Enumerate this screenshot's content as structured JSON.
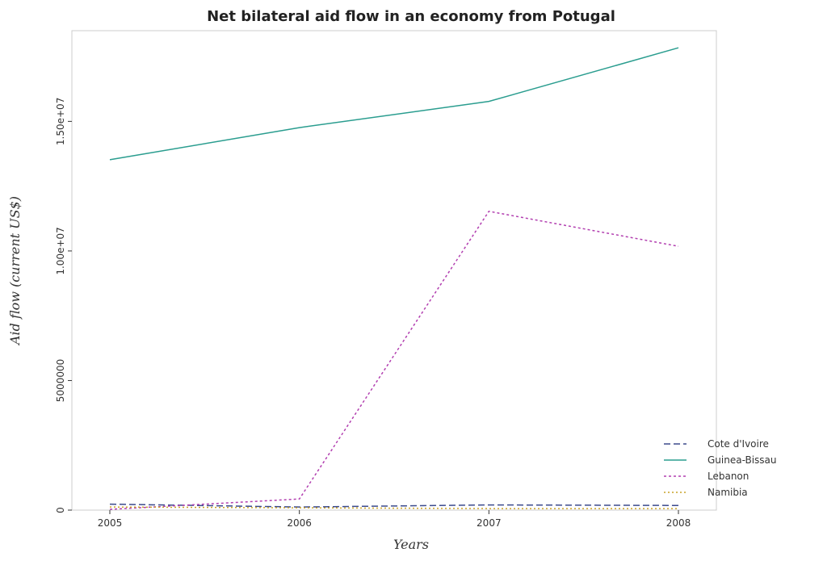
{
  "chart_data": {
    "type": "line",
    "title": "Net bilateral aid flow in an economy from Potugal",
    "xlabel": "Years",
    "ylabel": "Aid flow (current US$)",
    "categories": [
      "2005",
      "2006",
      "2007",
      "2008"
    ],
    "ylim": [
      0,
      18500000
    ],
    "yticks": [
      0,
      5000000,
      10000000,
      15000000
    ],
    "ytick_labels": [
      "0",
      "5000000",
      "1.00e+07",
      "1.50e+07"
    ],
    "grid": false,
    "legend_position": "bottom-right",
    "series": [
      {
        "name": "Cote d'Ivoire",
        "values": [
          230000,
          120000,
          200000,
          180000
        ],
        "color": "#3b4a8c",
        "dash": "8,4"
      },
      {
        "name": "Guinea-Bissau",
        "values": [
          13520000,
          14760000,
          15770000,
          17840000
        ],
        "color": "#2a9d8f",
        "dash": ""
      },
      {
        "name": "Lebanon",
        "values": [
          30000,
          430000,
          11530000,
          10180000
        ],
        "color": "#b23fb0",
        "dash": "3,3"
      },
      {
        "name": "Namibia",
        "values": [
          120000,
          90000,
          60000,
          60000
        ],
        "color": "#c9a227",
        "dash": "2,3"
      }
    ]
  }
}
